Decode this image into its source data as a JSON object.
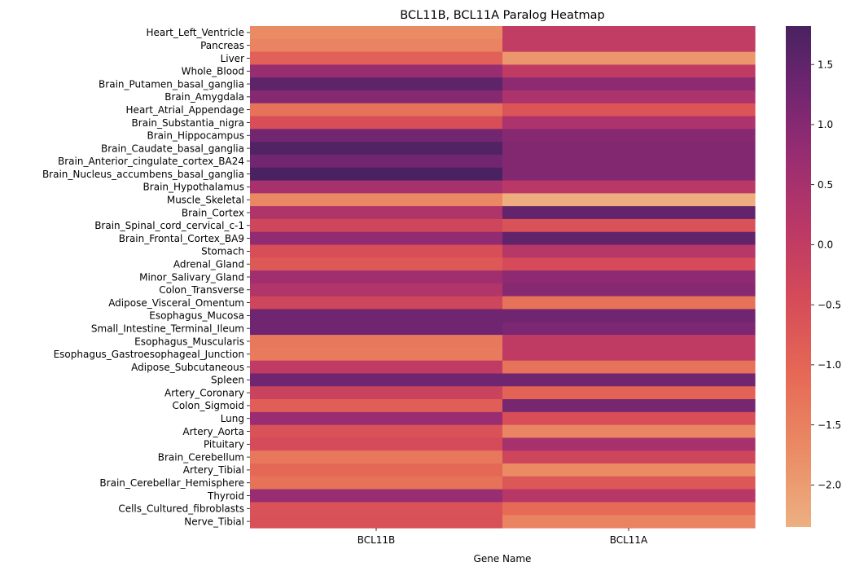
{
  "chart_data": {
    "type": "heatmap",
    "title": "BCL11B, BCL11A Paralog Heatmap",
    "xlabel": "Gene Name",
    "ylabel": "",
    "columns": [
      "BCL11B",
      "BCL11A"
    ],
    "rows": [
      "Heart_Left_Ventricle",
      "Pancreas",
      "Liver",
      "Whole_Blood",
      "Brain_Putamen_basal_ganglia",
      "Brain_Amygdala",
      "Heart_Atrial_Appendage",
      "Brain_Substantia_nigra",
      "Brain_Hippocampus",
      "Brain_Caudate_basal_ganglia",
      "Brain_Anterior_cingulate_cortex_BA24",
      "Brain_Nucleus_accumbens_basal_ganglia",
      "Brain_Hypothalamus",
      "Muscle_Skeletal",
      "Brain_Cortex",
      "Brain_Spinal_cord_cervical_c-1",
      "Brain_Frontal_Cortex_BA9",
      "Stomach",
      "Adrenal_Gland",
      "Minor_Salivary_Gland",
      "Colon_Transverse",
      "Adipose_Visceral_Omentum",
      "Esophagus_Mucosa",
      "Small_Intestine_Terminal_Ileum",
      "Esophagus_Muscularis",
      "Esophagus_Gastroesophageal_Junction",
      "Adipose_Subcutaneous",
      "Spleen",
      "Artery_Coronary",
      "Colon_Sigmoid",
      "Lung",
      "Artery_Aorta",
      "Pituitary",
      "Brain_Cerebellum",
      "Artery_Tibial",
      "Brain_Cerebellar_Hemisphere",
      "Thyroid",
      "Cells_Cultured_fibroblasts",
      "Nerve_Tibial"
    ],
    "values": [
      [
        -1.7,
        0.0
      ],
      [
        -1.55,
        0.0
      ],
      [
        -0.9,
        -1.9
      ],
      [
        0.75,
        0.05
      ],
      [
        1.55,
        0.9
      ],
      [
        1.0,
        0.4
      ],
      [
        -1.25,
        -0.65
      ],
      [
        -0.5,
        0.4
      ],
      [
        1.25,
        1.0
      ],
      [
        1.7,
        1.05
      ],
      [
        1.25,
        1.05
      ],
      [
        1.8,
        1.05
      ],
      [
        0.5,
        0.15
      ],
      [
        -1.65,
        -2.3
      ],
      [
        0.35,
        1.45
      ],
      [
        -0.3,
        -0.6
      ],
      [
        0.85,
        1.5
      ],
      [
        -0.5,
        0.2
      ],
      [
        -0.75,
        -0.45
      ],
      [
        0.6,
        0.9
      ],
      [
        0.3,
        1.0
      ],
      [
        -0.3,
        -1.25
      ],
      [
        1.3,
        1.3
      ],
      [
        1.3,
        1.15
      ],
      [
        -1.35,
        0.05
      ],
      [
        -1.4,
        0.05
      ],
      [
        0.05,
        -1.25
      ],
      [
        1.3,
        1.3
      ],
      [
        -0.2,
        -0.95
      ],
      [
        -0.85,
        1.2
      ],
      [
        0.7,
        -0.5
      ],
      [
        -0.6,
        -1.6
      ],
      [
        -0.45,
        0.5
      ],
      [
        -1.35,
        -0.3
      ],
      [
        -1.05,
        -1.7
      ],
      [
        -1.25,
        -0.7
      ],
      [
        0.75,
        0.2
      ],
      [
        -0.6,
        -1.1
      ],
      [
        -0.55,
        -1.55
      ]
    ],
    "colorbar": {
      "min": -2.35,
      "max": 1.82,
      "ticks": [
        -2.0,
        -1.5,
        -1.0,
        -0.5,
        0.0,
        0.5,
        1.0,
        1.5
      ],
      "tick_labels": [
        "−2.0",
        "−1.5",
        "−1.0",
        "−0.5",
        "0.0",
        "0.5",
        "1.0",
        "1.5"
      ],
      "colormap": "flare",
      "low_color": "#edb081",
      "high_color": "#4b2362"
    },
    "legend": "colorbar right",
    "grid": false
  }
}
